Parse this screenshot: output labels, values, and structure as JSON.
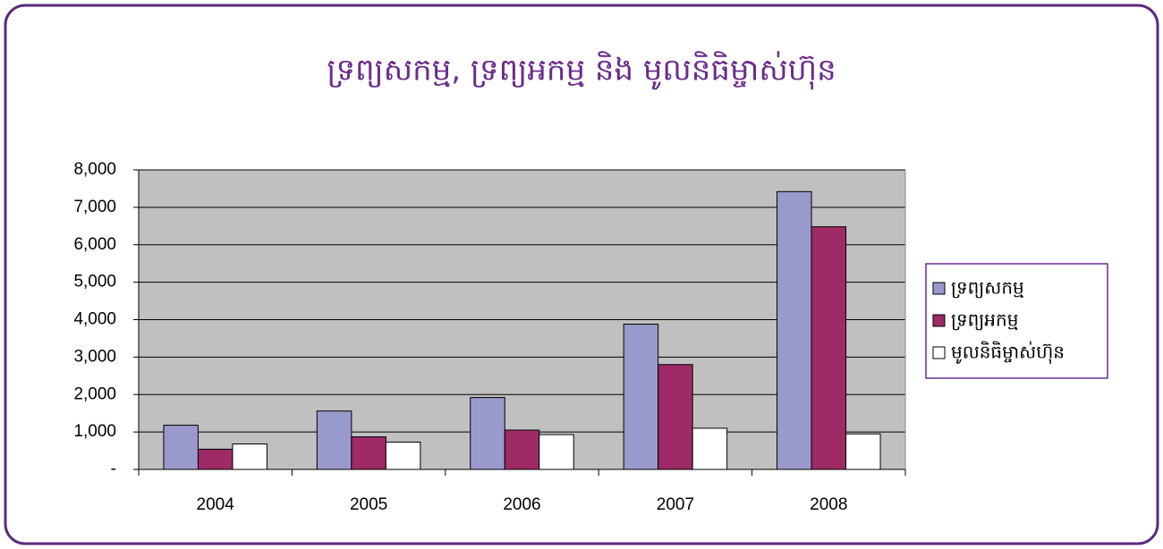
{
  "chart_data": {
    "type": "bar",
    "title": "ទ្រព្យសកម្ម, ទ្រព្យអកម្ម និង មូលនិធិម្ចាស់ហ៊ុន",
    "categories": [
      "2004",
      "2005",
      "2006",
      "2007",
      "2008"
    ],
    "series": [
      {
        "name": "ទ្រព្យសកម្ម",
        "color": "#9999cc",
        "values": [
          1180,
          1560,
          1920,
          3880,
          7420
        ]
      },
      {
        "name": "ទ្រព្យអកម្ម",
        "color": "#9e2a66",
        "values": [
          540,
          870,
          1050,
          2800,
          6480
        ]
      },
      {
        "name": "មូលនិធិម្ចាស់ហ៊ុន",
        "color": "#ffffff",
        "values": [
          680,
          730,
          930,
          1100,
          950
        ]
      }
    ],
    "ylim": [
      0,
      8000
    ],
    "yticks": [
      {
        "value": 0,
        "label": "-"
      },
      {
        "value": 1000,
        "label": "1,000"
      },
      {
        "value": 2000,
        "label": "2,000"
      },
      {
        "value": 3000,
        "label": "3,000"
      },
      {
        "value": 4000,
        "label": "4,000"
      },
      {
        "value": 5000,
        "label": "5,000"
      },
      {
        "value": 6000,
        "label": "6,000"
      },
      {
        "value": 7000,
        "label": "7,000"
      },
      {
        "value": 8000,
        "label": "8,000"
      }
    ],
    "grid": true,
    "legend": "right"
  }
}
